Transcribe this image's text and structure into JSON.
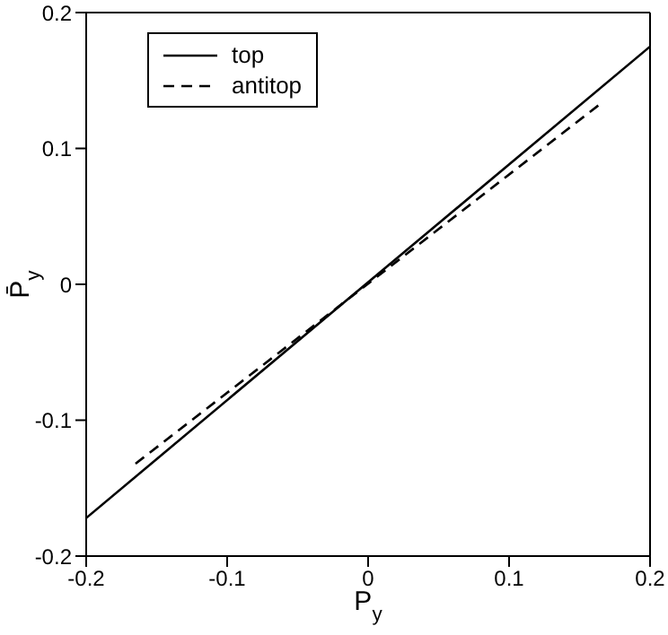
{
  "chart_data": {
    "type": "line",
    "xlabel": "P$_{y}$",
    "ylabel": "P̄$_{y}$",
    "xlim": [
      -0.2,
      0.2
    ],
    "ylim": [
      -0.2,
      0.2
    ],
    "xticks": [
      -0.2,
      -0.1,
      0,
      0.1,
      0.2
    ],
    "yticks": [
      -0.2,
      -0.1,
      0,
      0.1,
      0.2
    ],
    "grid": false,
    "legend": "top left",
    "marker": "none",
    "series": [
      {
        "name": "top",
        "color": "#000000",
        "line_style": "solid",
        "x": [
          -0.2,
          0.2
        ],
        "values": [
          -0.172,
          0.175
        ]
      },
      {
        "name": "antitop",
        "color": "#000000",
        "line_style": "dashed",
        "x": [
          -0.165,
          0.165
        ],
        "values": [
          -0.132,
          0.133
        ]
      }
    ]
  }
}
